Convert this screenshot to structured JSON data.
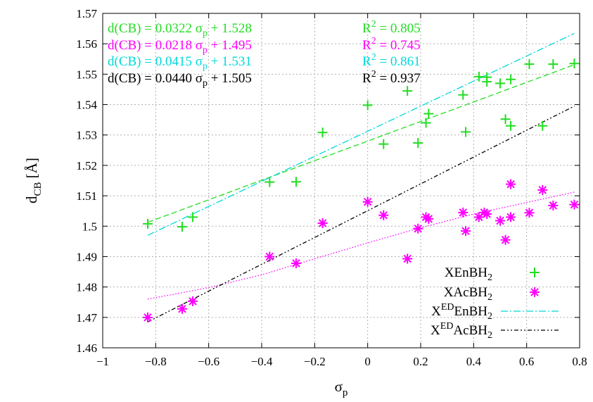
{
  "chart_data": {
    "type": "scatter",
    "xlabel": "σp",
    "ylabel": "dCB [Å]",
    "xlim": [
      -1,
      0.8
    ],
    "ylim": [
      1.46,
      1.57
    ],
    "grid": true,
    "legend_position": "bottom-right",
    "x_ticks": [
      "−1",
      "−0.8",
      "−0.6",
      "−0.4",
      "−0.2",
      "0",
      "0.2",
      "0.4",
      "0.6",
      "0.8"
    ],
    "y_ticks": [
      "1.46",
      "1.47",
      "1.48",
      "1.49",
      "1.5",
      "1.51",
      "1.52",
      "1.53",
      "1.54",
      "1.55",
      "1.56",
      "1.57"
    ],
    "series": [
      {
        "name": "XEnBH2",
        "marker": "plus",
        "color": "#22dd22",
        "points": [
          [
            -0.83,
            1.5008
          ],
          [
            -0.7,
            1.4998
          ],
          [
            -0.66,
            1.503
          ],
          [
            -0.37,
            1.5145
          ],
          [
            -0.27,
            1.5146
          ],
          [
            -0.17,
            1.5308
          ],
          [
            0.0,
            1.5398
          ],
          [
            0.06,
            1.527
          ],
          [
            0.15,
            1.5445
          ],
          [
            0.19,
            1.5274
          ],
          [
            0.22,
            1.534
          ],
          [
            0.23,
            1.537
          ],
          [
            0.36,
            1.5432
          ],
          [
            0.37,
            1.531
          ],
          [
            0.42,
            1.5492
          ],
          [
            0.45,
            1.549
          ],
          [
            0.45,
            1.5475
          ],
          [
            0.5,
            1.547
          ],
          [
            0.52,
            1.5352
          ],
          [
            0.54,
            1.533
          ],
          [
            0.54,
            1.5483
          ],
          [
            0.61,
            1.5533
          ],
          [
            0.66,
            1.533
          ],
          [
            0.7,
            1.5533
          ],
          [
            0.78,
            1.5535
          ]
        ]
      },
      {
        "name": "XAcBH2",
        "marker": "star",
        "color": "#ff00ff",
        "points": [
          [
            -0.83,
            1.47
          ],
          [
            -0.7,
            1.4728
          ],
          [
            -0.66,
            1.4753
          ],
          [
            -0.37,
            1.49
          ],
          [
            -0.27,
            1.4878
          ],
          [
            -0.17,
            1.501
          ],
          [
            0.0,
            1.508
          ],
          [
            0.06,
            1.5036
          ],
          [
            0.15,
            1.4893
          ],
          [
            0.19,
            1.4992
          ],
          [
            0.22,
            1.503
          ],
          [
            0.23,
            1.5024
          ],
          [
            0.36,
            1.5045
          ],
          [
            0.37,
            1.4984
          ],
          [
            0.42,
            1.503
          ],
          [
            0.44,
            1.5045
          ],
          [
            0.45,
            1.504
          ],
          [
            0.5,
            1.5018
          ],
          [
            0.52,
            1.4955
          ],
          [
            0.54,
            1.503
          ],
          [
            0.54,
            1.5138
          ],
          [
            0.61,
            1.5044
          ],
          [
            0.66,
            1.5119
          ],
          [
            0.7,
            1.5068
          ],
          [
            0.78,
            1.5071
          ]
        ]
      }
    ],
    "fits": [
      {
        "name": "XEnBH2",
        "slope": 0.0322,
        "intercept": 1.528,
        "x_range": [
          -0.83,
          0.78
        ],
        "style": "dashed",
        "color": "#22dd22"
      },
      {
        "name": "XAcBH2",
        "slope": 0.0218,
        "intercept": 1.495,
        "style": "dotted",
        "color": "#ff00ff",
        "curve": [
          [
            -0.83,
            1.476
          ],
          [
            -0.6,
            1.4798
          ],
          [
            -0.4,
            1.484
          ],
          [
            -0.2,
            1.4893
          ],
          [
            0,
            1.4945
          ],
          [
            0.2,
            1.4995
          ],
          [
            0.4,
            1.504
          ],
          [
            0.6,
            1.5078
          ],
          [
            0.78,
            1.5112
          ]
        ]
      },
      {
        "name": "XEDEnBH2",
        "slope": 0.0415,
        "intercept": 1.531,
        "x_range": [
          -0.83,
          0.78
        ],
        "style": "dashdot",
        "color": "#00d8d8",
        "curve": [
          [
            -0.83,
            1.497
          ],
          [
            0.78,
            1.5634
          ]
        ]
      },
      {
        "name": "XEDAcBH2",
        "slope": 0.044,
        "intercept": 1.505,
        "x_range": [
          -0.83,
          0.78
        ],
        "style": "dashdotdot",
        "color": "#000000",
        "curve": [
          [
            -0.83,
            1.4685
          ],
          [
            0.78,
            1.5395
          ]
        ]
      }
    ],
    "annotations": [
      {
        "text": "d(CB) = 0.0322 σp + 1.528",
        "r2": "0.805",
        "color": "#22dd22"
      },
      {
        "text": "d(CB) = 0.0218 σp + 1.495",
        "r2": "0.745",
        "color": "#ff00ff"
      },
      {
        "text": "d(CB) = 0.0415 σp + 1.531",
        "r2": "0.861",
        "color": "#00d8d8"
      },
      {
        "text": "d(CB) = 0.0440 σp + 1.505",
        "r2": "0.937",
        "color": "#000000"
      }
    ],
    "legend": [
      {
        "base": "XEnBH",
        "sub": "2",
        "sup": "",
        "sample": "plus",
        "color": "#22dd22"
      },
      {
        "base": "XAcBH",
        "sub": "2",
        "sup": "",
        "sample": "star",
        "color": "#ff00ff"
      },
      {
        "base": "X",
        "sup": "ED",
        "mid": "EnBH",
        "sub": "2",
        "sample": "dashdot",
        "color": "#00d8d8"
      },
      {
        "base": "X",
        "sup": "ED",
        "mid": "AcBH",
        "sub": "2",
        "sample": "dashdotdot",
        "color": "#000000"
      }
    ]
  }
}
